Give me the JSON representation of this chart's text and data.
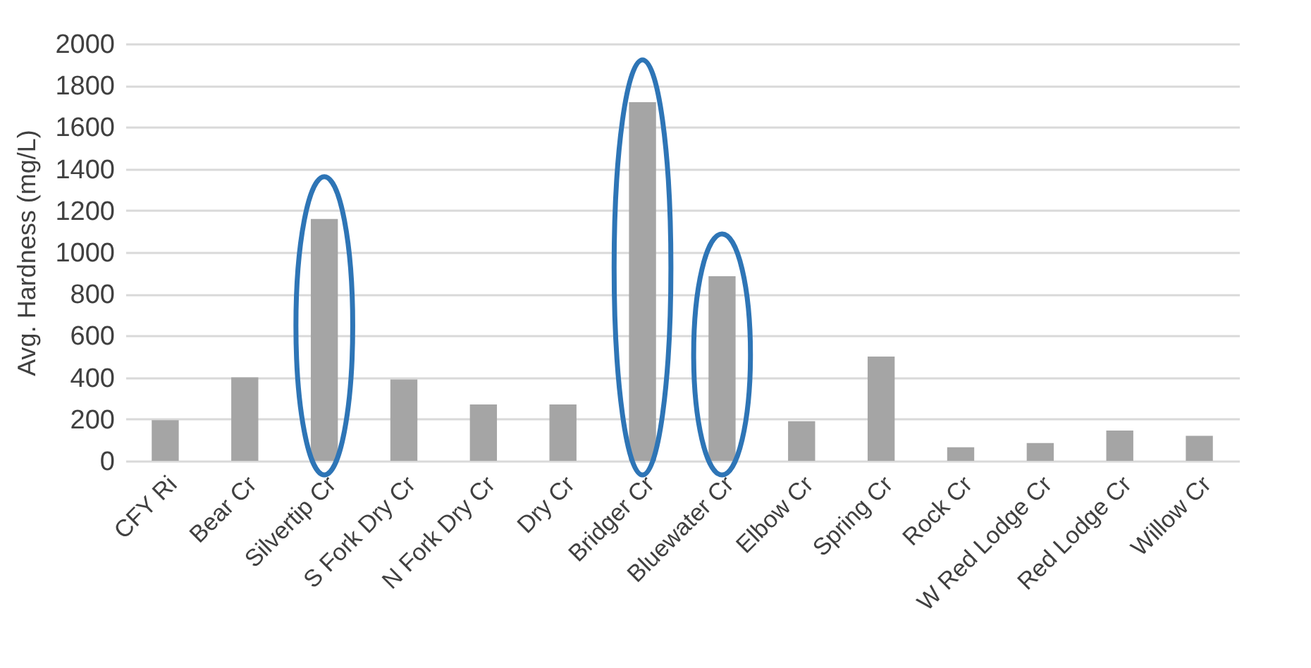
{
  "chart_data": {
    "type": "bar",
    "ylabel": "Avg. Hardness (mg/L)",
    "categories": [
      "CFY Ri",
      "Bear Cr",
      "Silvertip Cr",
      "S Fork Dry Cr",
      "N Fork Dry Cr",
      "Dry Cr",
      "Bridger Cr",
      "Bluewater Cr",
      "Elbow Cr",
      "Spring Cr",
      "Rock Cr",
      "W Red Lodge Cr",
      "Red Lodge Cr",
      "Willow Cr"
    ],
    "values": [
      195,
      400,
      1160,
      390,
      270,
      270,
      1720,
      885,
      190,
      500,
      65,
      85,
      145,
      120
    ],
    "color": "#a5a5a5",
    "ylim": [
      0,
      2000
    ],
    "yticks": [
      0,
      200,
      400,
      600,
      800,
      1000,
      1200,
      1400,
      1600,
      1800,
      2000
    ],
    "grid": "y"
  }
}
